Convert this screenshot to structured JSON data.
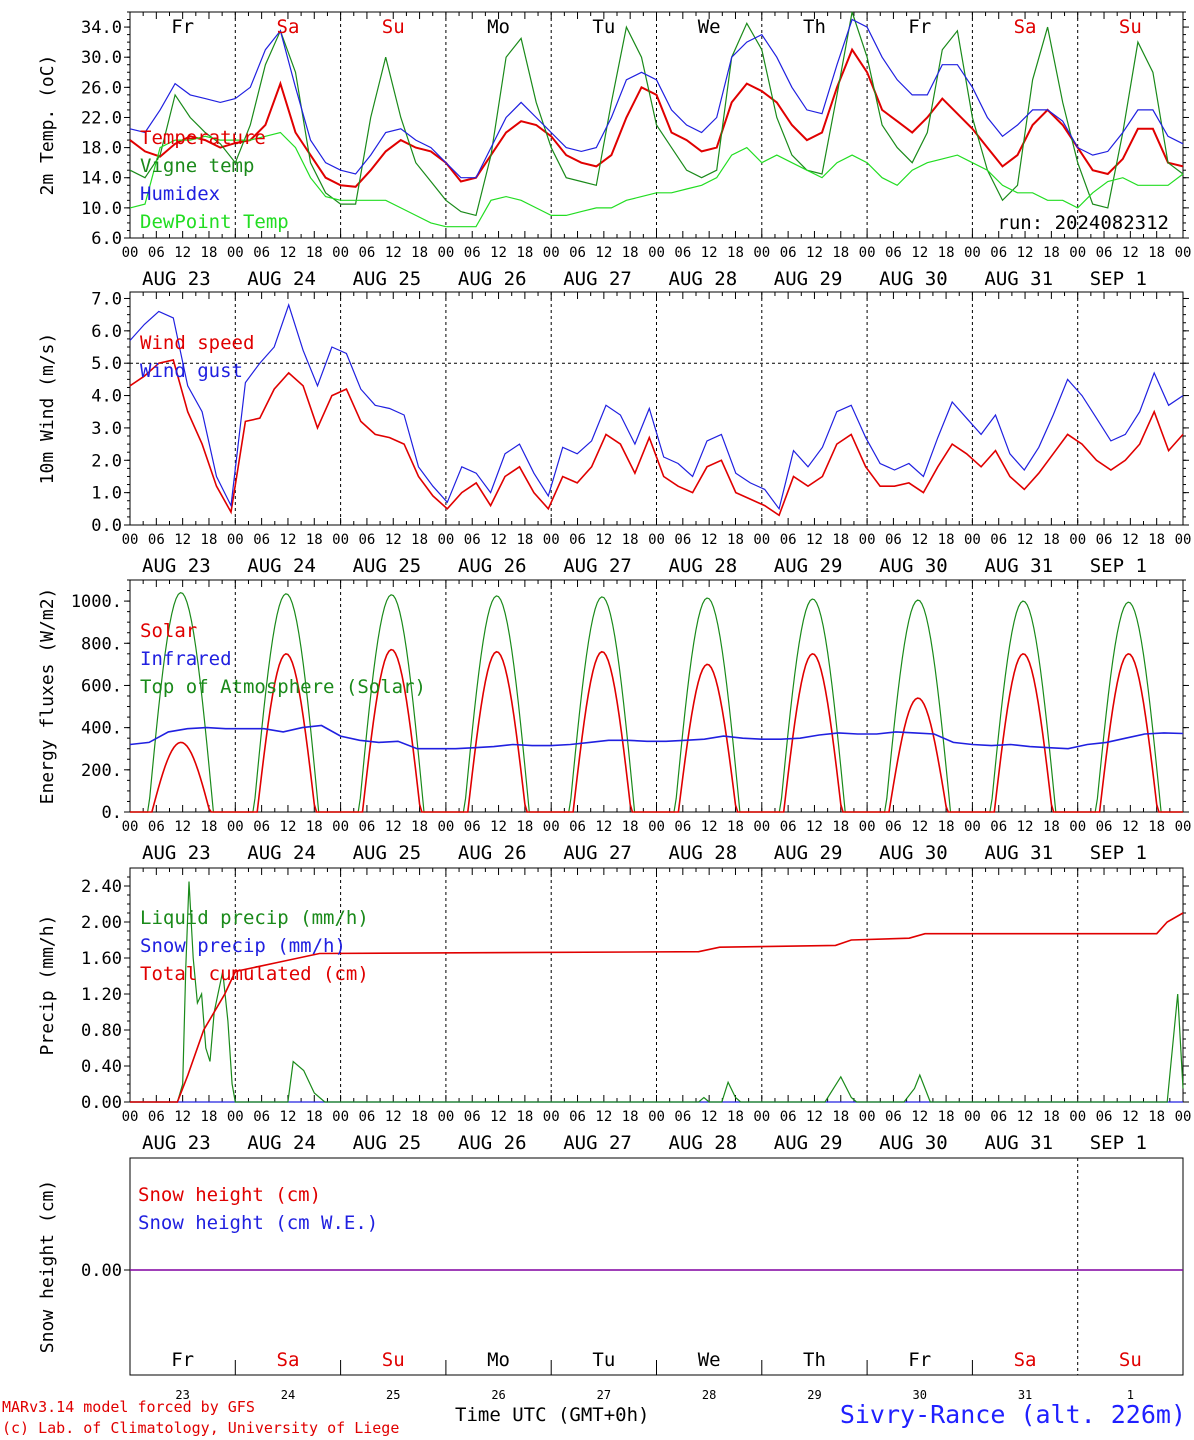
{
  "station": "Sivry-Rance (alt. 226m)",
  "footer": {
    "line1": "MARv3.14 model forced by GFS",
    "line2": "(c) Lab. of Climatology, University of Liege",
    "x_title": "Time UTC (GMT+0h)"
  },
  "colors": {
    "red": "#e00000",
    "green": "#1a8a1a",
    "blue": "#2020e0",
    "lime": "#22dd22",
    "purple": "#8000a0"
  },
  "hour_ticks": [
    "00",
    "06",
    "12",
    "18"
  ],
  "end_tick": "00",
  "day_labels": [
    "AUG 23",
    "AUG 24",
    "AUG 25",
    "AUG 26",
    "AUG 27",
    "AUG 28",
    "AUG 29",
    "AUG 30",
    "AUG 31",
    "SEP  1"
  ],
  "weekdays": [
    {
      "label": "Fr",
      "weekend": false
    },
    {
      "label": "Sa",
      "weekend": true
    },
    {
      "label": "Su",
      "weekend": true
    },
    {
      "label": "Mo",
      "weekend": false
    },
    {
      "label": "Tu",
      "weekend": false
    },
    {
      "label": "We",
      "weekend": false
    },
    {
      "label": "Th",
      "weekend": false
    },
    {
      "label": "Fr",
      "weekend": false
    },
    {
      "label": "Sa",
      "weekend": true
    },
    {
      "label": "Su",
      "weekend": true
    }
  ],
  "day_numbers": [
    "23",
    "24",
    "25",
    "26",
    "27",
    "28",
    "29",
    "30",
    "31",
    "1"
  ],
  "chart_data": [
    {
      "id": "temp",
      "type": "line",
      "ylabel": "2m Temp. (oC)",
      "ylim": [
        6,
        36
      ],
      "yticks": [
        "6.0",
        "10.0",
        "14.0",
        "18.0",
        "22.0",
        "26.0",
        "30.0",
        "34.0"
      ],
      "ytick_values": [
        6,
        10,
        14,
        18,
        22,
        26,
        30,
        34
      ],
      "annotation": "run: 2024082312",
      "series": [
        {
          "name": "Temperature",
          "color": "red",
          "values": [
            19,
            17.5,
            16.8,
            18.5,
            19.5,
            19,
            18,
            18.6,
            19,
            21,
            26.5,
            20,
            17,
            14,
            13,
            12.8,
            15,
            17.5,
            19,
            18,
            17.5,
            16,
            13.5,
            14,
            17,
            20,
            21.5,
            21,
            19.5,
            17,
            16,
            15.5,
            17,
            22,
            26,
            25,
            20,
            19,
            17.5,
            18,
            24,
            26.5,
            25.5,
            24,
            21,
            19,
            20,
            26,
            31,
            28,
            23,
            21.5,
            20,
            22,
            24.5,
            22.5,
            20.5,
            18,
            15.5,
            17,
            21,
            23,
            21,
            18,
            15,
            14.5,
            16.5,
            20.5,
            20.5,
            16,
            15.5
          ]
        },
        {
          "name": "Vigne temp",
          "color": "green",
          "values": [
            15,
            14,
            17,
            25,
            22,
            20,
            18.5,
            16,
            21,
            29,
            33.5,
            28,
            16,
            12,
            10.5,
            10.5,
            22,
            30,
            22,
            16,
            13.5,
            11,
            9.5,
            9,
            17,
            30,
            32.5,
            24,
            18,
            14,
            13.5,
            13,
            24,
            34,
            30,
            21,
            18,
            15,
            14,
            15,
            30,
            34.5,
            31,
            22,
            17,
            15,
            14.5,
            25,
            36,
            30,
            21,
            18,
            16,
            20,
            31,
            33.5,
            22,
            15,
            11,
            13,
            27,
            34,
            24,
            16,
            10.5,
            10,
            20,
            32,
            28,
            16,
            14.5
          ]
        },
        {
          "name": "Humidex",
          "color": "blue",
          "values": [
            20.5,
            20,
            23,
            26.5,
            25,
            24.5,
            24,
            24.5,
            26,
            31,
            33.5,
            26,
            19,
            16,
            15,
            14.5,
            17,
            20,
            20.5,
            19,
            18,
            16,
            14,
            14,
            18,
            22,
            24,
            22,
            20,
            18,
            17.5,
            18,
            22,
            27,
            28,
            27,
            23,
            21,
            20,
            22,
            30,
            32,
            33,
            30,
            26,
            23,
            22.5,
            29,
            35,
            34,
            30,
            27,
            25,
            25,
            29,
            29,
            26,
            22,
            19.5,
            21,
            23,
            23,
            21.5,
            18,
            17,
            17.5,
            20,
            23,
            23,
            19.5,
            18.5
          ]
        },
        {
          "name": "DewPoint Temp",
          "color": "lime",
          "values": [
            10,
            10.5,
            18,
            19,
            19,
            19.5,
            19,
            19,
            19,
            19.5,
            20,
            18,
            14,
            11.5,
            11,
            11,
            11,
            11,
            10,
            9,
            8,
            7.5,
            7.5,
            7.5,
            11,
            11.5,
            11,
            10,
            9,
            9,
            9.5,
            10,
            10,
            11,
            11.5,
            12,
            12,
            12.5,
            13,
            14,
            17,
            18,
            16,
            17,
            16,
            15,
            14,
            16,
            17,
            16,
            14,
            13,
            15,
            16,
            16.5,
            17,
            16,
            15,
            13,
            12,
            12,
            11,
            11,
            10,
            12,
            13.5,
            14,
            13,
            13,
            13,
            14.5
          ]
        }
      ]
    },
    {
      "id": "wind",
      "type": "line",
      "ylabel": "10m Wind (m/s)",
      "ylim": [
        0,
        7.2
      ],
      "yticks": [
        "0.0",
        "1.0",
        "2.0",
        "3.0",
        "4.0",
        "5.0",
        "6.0",
        "7.0"
      ],
      "ytick_values": [
        0,
        1,
        2,
        3,
        4,
        5,
        6,
        7
      ],
      "series": [
        {
          "name": "Wind speed",
          "color": "red",
          "values": [
            4.3,
            4.6,
            5.0,
            5.1,
            3.5,
            2.5,
            1.2,
            0.4,
            3.2,
            3.3,
            4.2,
            4.7,
            4.3,
            3.0,
            4.0,
            4.2,
            3.2,
            2.8,
            2.7,
            2.5,
            1.5,
            0.9,
            0.5,
            1.0,
            1.3,
            0.6,
            1.5,
            1.8,
            1.0,
            0.5,
            1.5,
            1.3,
            1.8,
            2.8,
            2.5,
            1.6,
            2.7,
            1.5,
            1.2,
            1.0,
            1.8,
            2.0,
            1.0,
            0.8,
            0.6,
            0.3,
            1.5,
            1.2,
            1.5,
            2.5,
            2.8,
            1.8,
            1.2,
            1.2,
            1.3,
            1.0,
            1.8,
            2.5,
            2.2,
            1.8,
            2.3,
            1.5,
            1.1,
            1.6,
            2.2,
            2.8,
            2.5,
            2.0,
            1.7,
            2.0,
            2.5,
            3.5,
            2.3,
            2.8
          ]
        },
        {
          "name": "Wind gust",
          "color": "blue",
          "values": [
            5.7,
            6.2,
            6.6,
            6.4,
            4.3,
            3.5,
            1.5,
            0.6,
            4.4,
            5.0,
            5.5,
            6.8,
            5.4,
            4.3,
            5.5,
            5.3,
            4.2,
            3.7,
            3.6,
            3.4,
            1.8,
            1.2,
            0.7,
            1.8,
            1.6,
            1.0,
            2.2,
            2.5,
            1.6,
            0.9,
            2.4,
            2.2,
            2.6,
            3.7,
            3.4,
            2.5,
            3.6,
            2.1,
            1.9,
            1.5,
            2.6,
            2.8,
            1.6,
            1.3,
            1.1,
            0.5,
            2.3,
            1.8,
            2.4,
            3.5,
            3.7,
            2.7,
            1.9,
            1.7,
            1.9,
            1.5,
            2.7,
            3.8,
            3.3,
            2.8,
            3.4,
            2.2,
            1.7,
            2.4,
            3.4,
            4.5,
            4.0,
            3.3,
            2.6,
            2.8,
            3.5,
            4.7,
            3.7,
            4.0
          ]
        }
      ],
      "reference_line": 5.0
    },
    {
      "id": "energy",
      "type": "line",
      "ylabel": "Energy fluxes (W/m2)",
      "ylim": [
        0,
        1100
      ],
      "yticks": [
        "0.",
        "200.",
        "400.",
        "600.",
        "800.",
        "1000."
      ],
      "ytick_values": [
        0,
        200,
        400,
        600,
        800,
        1000
      ],
      "series": [
        {
          "name": "Solar",
          "color": "red",
          "peak": [
            330,
            750,
            770,
            760,
            760,
            700,
            750,
            540,
            750,
            750
          ]
        },
        {
          "name": "Infrared",
          "color": "blue",
          "values": [
            320,
            330,
            380,
            395,
            400,
            395,
            395,
            395,
            380,
            400,
            410,
            360,
            340,
            330,
            335,
            300,
            300,
            300,
            305,
            310,
            320,
            315,
            315,
            320,
            330,
            340,
            340,
            335,
            335,
            340,
            345,
            360,
            350,
            345,
            345,
            350,
            365,
            375,
            370,
            370,
            380,
            375,
            370,
            330,
            320,
            315,
            320,
            310,
            305,
            300,
            320,
            330,
            350,
            370,
            375,
            372
          ]
        },
        {
          "name": "Top of Atmosphere (Solar)",
          "color": "green",
          "peak": [
            1040,
            1035,
            1030,
            1025,
            1020,
            1015,
            1010,
            1005,
            1000,
            995
          ]
        }
      ]
    },
    {
      "id": "precip",
      "type": "line",
      "ylabel": "Precip (mm/h)",
      "ylim": [
        0,
        2.6
      ],
      "yticks": [
        "0.00",
        "0.40",
        "0.80",
        "1.20",
        "1.60",
        "2.00",
        "2.40"
      ],
      "ytick_values": [
        0,
        0.4,
        0.8,
        1.2,
        1.6,
        2.0,
        2.4
      ],
      "series": [
        {
          "name": "Liquid precip (mm/h)",
          "color": "green",
          "events": [
            [
              0.45,
              0
            ],
            [
              0.5,
              0.2
            ],
            [
              0.53,
              1.5
            ],
            [
              0.56,
              2.45
            ],
            [
              0.6,
              1.6
            ],
            [
              0.64,
              1.1
            ],
            [
              0.68,
              1.2
            ],
            [
              0.72,
              0.6
            ],
            [
              0.76,
              0.45
            ],
            [
              0.8,
              1.0
            ],
            [
              0.88,
              1.45
            ],
            [
              0.93,
              0.9
            ],
            [
              0.97,
              0.2
            ],
            [
              1.0,
              0
            ],
            [
              1.5,
              0
            ],
            [
              1.55,
              0.45
            ],
            [
              1.65,
              0.35
            ],
            [
              1.75,
              0.1
            ],
            [
              1.85,
              0
            ],
            [
              5.4,
              0
            ],
            [
              5.45,
              0.05
            ],
            [
              5.5,
              0
            ],
            [
              5.62,
              0
            ],
            [
              5.68,
              0.22
            ],
            [
              5.75,
              0.05
            ],
            [
              5.8,
              0
            ],
            [
              6.6,
              0
            ],
            [
              6.75,
              0.28
            ],
            [
              6.85,
              0.05
            ],
            [
              6.9,
              0
            ],
            [
              7.35,
              0
            ],
            [
              7.45,
              0.15
            ],
            [
              7.5,
              0.3
            ],
            [
              7.6,
              0
            ],
            [
              9.85,
              0
            ],
            [
              9.95,
              1.2
            ],
            [
              10.0,
              0.15
            ]
          ]
        },
        {
          "name": "Snow precip (mm/h)",
          "color": "blue",
          "values": [
            0
          ]
        },
        {
          "name": "Total cumulated (cm)",
          "color": "red",
          "steps": [
            [
              0.0,
              0
            ],
            [
              0.45,
              0
            ],
            [
              0.55,
              0.3
            ],
            [
              0.7,
              0.8
            ],
            [
              0.9,
              1.2
            ],
            [
              1.0,
              1.45
            ],
            [
              1.4,
              1.55
            ],
            [
              1.8,
              1.65
            ],
            [
              5.4,
              1.67
            ],
            [
              5.6,
              1.72
            ],
            [
              6.7,
              1.74
            ],
            [
              6.85,
              1.8
            ],
            [
              7.4,
              1.82
            ],
            [
              7.55,
              1.87
            ],
            [
              9.75,
              1.87
            ],
            [
              9.85,
              2.0
            ],
            [
              10.0,
              2.1
            ]
          ]
        }
      ]
    },
    {
      "id": "snow",
      "type": "line",
      "ylabel": "Snow height (cm)",
      "yticks": [
        "0.00"
      ],
      "series": [
        {
          "name": "Snow height (cm)",
          "color": "red",
          "values": [
            0
          ]
        },
        {
          "name": "Snow height (cm W.E.)",
          "color": "blue",
          "values": [
            0
          ]
        }
      ]
    }
  ]
}
